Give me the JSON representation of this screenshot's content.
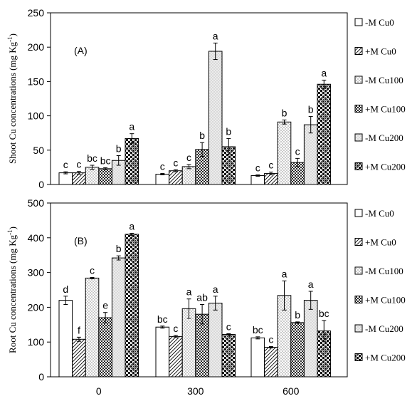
{
  "chart_data": [
    {
      "type": "bar",
      "panel_label": "(A)",
      "ylabel": "Shoot Cu concentrations (mg Kg",
      "ylabel_sup": "-1",
      "ylabel_close": ")",
      "ylim": [
        0,
        250
      ],
      "yticks": [
        "0",
        "50",
        "100",
        "150",
        "200",
        "250"
      ],
      "categories": [
        "0",
        "300",
        "600"
      ],
      "series": [
        {
          "name": "-M Cu0",
          "values": [
            17,
            15,
            13
          ],
          "errors": [
            1.5,
            1,
            1
          ],
          "letters": [
            "c",
            "c",
            "c"
          ]
        },
        {
          "name": "+M Cu0",
          "values": [
            17,
            20,
            16
          ],
          "errors": [
            2,
            1.5,
            2
          ],
          "letters": [
            "c",
            "c",
            "c"
          ]
        },
        {
          "name": "-M Cu100",
          "values": [
            25,
            26,
            91
          ],
          "errors": [
            3,
            3,
            3
          ],
          "letters": [
            "bc",
            "c",
            "b"
          ]
        },
        {
          "name": "+M Cu100",
          "values": [
            23,
            51,
            32
          ],
          "errors": [
            1.5,
            10,
            6
          ],
          "letters": [
            "bc",
            "b",
            "c"
          ]
        },
        {
          "name": "-M Cu200",
          "values": [
            35,
            194,
            87
          ],
          "errors": [
            7,
            12,
            12
          ],
          "letters": [
            "b",
            "a",
            "b"
          ]
        },
        {
          "name": "+M Cu200",
          "values": [
            67,
            55,
            146
          ],
          "errors": [
            7,
            12,
            6
          ],
          "letters": [
            "a",
            "b",
            "a"
          ]
        }
      ]
    },
    {
      "type": "bar",
      "panel_label": "(B)",
      "ylabel": "Root Cu concentrations (mg Kg",
      "ylabel_sup": "-1",
      "ylabel_close": ")",
      "ylim": [
        0,
        500
      ],
      "yticks": [
        "0",
        "100",
        "200",
        "300",
        "400",
        "500"
      ],
      "categories": [
        "0",
        "300",
        "600"
      ],
      "series": [
        {
          "name": "-M Cu0",
          "values": [
            220,
            143,
            112
          ],
          "errors": [
            12,
            3,
            3
          ],
          "letters": [
            "d",
            "bc",
            "bc"
          ]
        },
        {
          "name": "+M Cu0",
          "values": [
            108,
            116,
            85
          ],
          "errors": [
            6,
            3,
            2
          ],
          "letters": [
            "f",
            "c",
            "c"
          ]
        },
        {
          "name": "-M Cu100",
          "values": [
            284,
            196,
            234
          ],
          "errors": [
            2,
            28,
            42
          ],
          "letters": [
            "c",
            "a",
            "a"
          ]
        },
        {
          "name": "+M Cu100",
          "values": [
            170,
            180,
            156
          ],
          "errors": [
            15,
            28,
            2
          ],
          "letters": [
            "e",
            "ab",
            "b"
          ]
        },
        {
          "name": "-M Cu200",
          "values": [
            342,
            212,
            220
          ],
          "errors": [
            6,
            20,
            26
          ],
          "letters": [
            "b",
            "a",
            "a"
          ]
        },
        {
          "name": "+M Cu200",
          "values": [
            410,
            122,
            132
          ],
          "errors": [
            3,
            2,
            30
          ],
          "letters": [
            "a",
            "c",
            "bc"
          ]
        }
      ]
    }
  ],
  "legend": [
    "-M Cu0",
    "+M Cu0",
    "-M Cu100",
    "+M Cu100",
    "-M Cu200",
    "+M Cu200"
  ],
  "colors": {
    "axis": "#000000",
    "bar_stroke": "#000000",
    "dark_fill": "#4a4a4a",
    "light_fill": "#e6e6e6"
  }
}
